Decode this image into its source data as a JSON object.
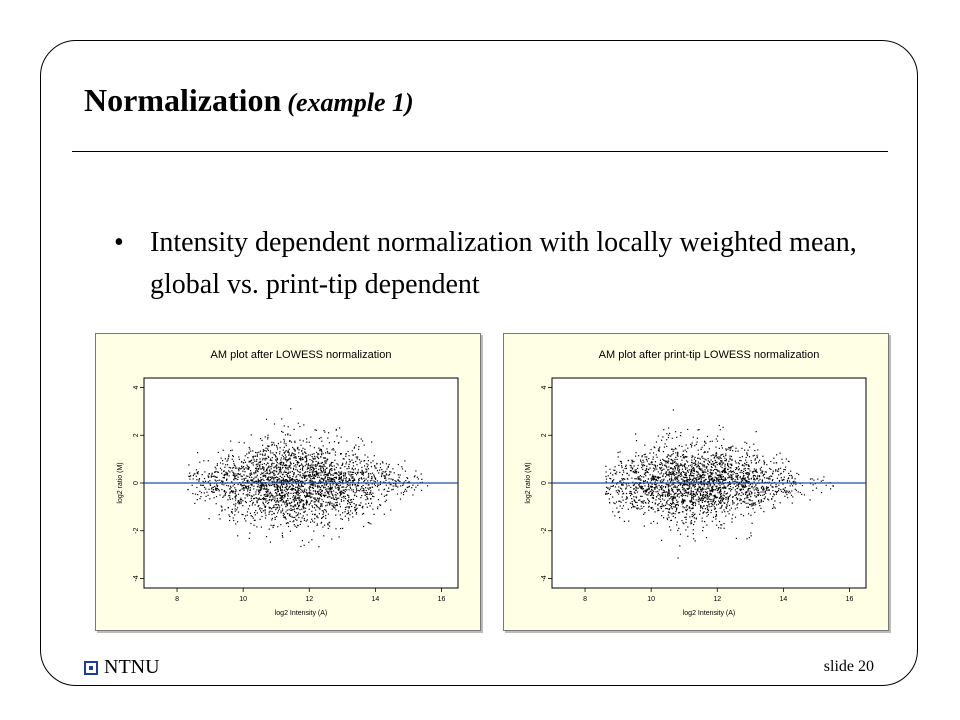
{
  "slide": {
    "title": "Normalization",
    "title_sub": "(example 1)",
    "bullet": "Intensity dependent normalization with locally weighted mean, global vs. print-tip dependent",
    "footer_logo_text": "NTNU",
    "slide_number": "slide 20"
  },
  "colors": {
    "panel_background": "#ffffe6",
    "fit_line": "#1f4fa8",
    "logo": "#1c3f94"
  },
  "chart_data": [
    {
      "type": "scatter",
      "title": "AM plot after LOWESS normalization",
      "xlabel": "log2 Intensity (A)",
      "ylabel": "log2 ratio (M)",
      "xlim": [
        7,
        16.5
      ],
      "ylim": [
        -4.4,
        4.4
      ],
      "xticks": [
        8,
        10,
        12,
        14,
        16
      ],
      "yticks": [
        -4,
        -2,
        0,
        2,
        4
      ],
      "reference_line_y": 0,
      "cloud": {
        "x_min": 8.3,
        "x_max": 15.6,
        "x_center": 11.6,
        "y_center": 0.05,
        "y_spread_max": 1.9,
        "n_points": 2600
      }
    },
    {
      "type": "scatter",
      "title": "AM plot after print-tip LOWESS normalization",
      "xlabel": "log2 Intensity (A)",
      "ylabel": "log2 ratio (M)",
      "xlim": [
        7,
        16.5
      ],
      "ylim": [
        -4.4,
        4.4
      ],
      "xticks": [
        8,
        10,
        12,
        14,
        16
      ],
      "yticks": [
        -4,
        -2,
        0,
        2,
        4
      ],
      "reference_line_y": 0,
      "cloud": {
        "x_min": 8.6,
        "x_max": 15.5,
        "x_center": 11.3,
        "y_center": 0.0,
        "y_spread_max": 1.8,
        "n_points": 2400
      }
    }
  ]
}
